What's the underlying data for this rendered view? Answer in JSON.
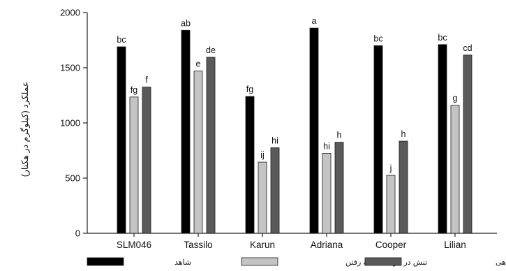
{
  "chart_data": {
    "type": "bar",
    "title": "",
    "xlabel": "",
    "ylabel": "عملکرد (کیلوگرم در هکتار)",
    "ylim": [
      0,
      2000
    ],
    "yticks": [
      0,
      500,
      1000,
      1500,
      2000
    ],
    "categories": [
      "SLM046",
      "Tassilo",
      "Karun",
      "Adriana",
      "Cooper",
      "Lilian"
    ],
    "series": [
      {
        "name": "شاهد",
        "color": "#000000",
        "values": [
          1690,
          1840,
          1240,
          1860,
          1700,
          1710
        ],
        "labels": [
          "bc",
          "ab",
          "fg",
          "a",
          "bc",
          "bc"
        ]
      },
      {
        "name": "تنش در مرحله ساقه رفتن",
        "color": "#c4c4c4",
        "values": [
          1235,
          1470,
          645,
          725,
          525,
          1160
        ],
        "labels": [
          "fg",
          "e",
          "ij",
          "hi",
          "j",
          "g"
        ]
      },
      {
        "name": "تنش در مرحله گل دهی",
        "color": "#5a5a5a",
        "values": [
          1325,
          1595,
          775,
          825,
          835,
          1615
        ],
        "labels": [
          "f",
          "de",
          "hi",
          "h",
          "h",
          "cd"
        ]
      }
    ],
    "grid": false,
    "legend_position": "bottom"
  }
}
